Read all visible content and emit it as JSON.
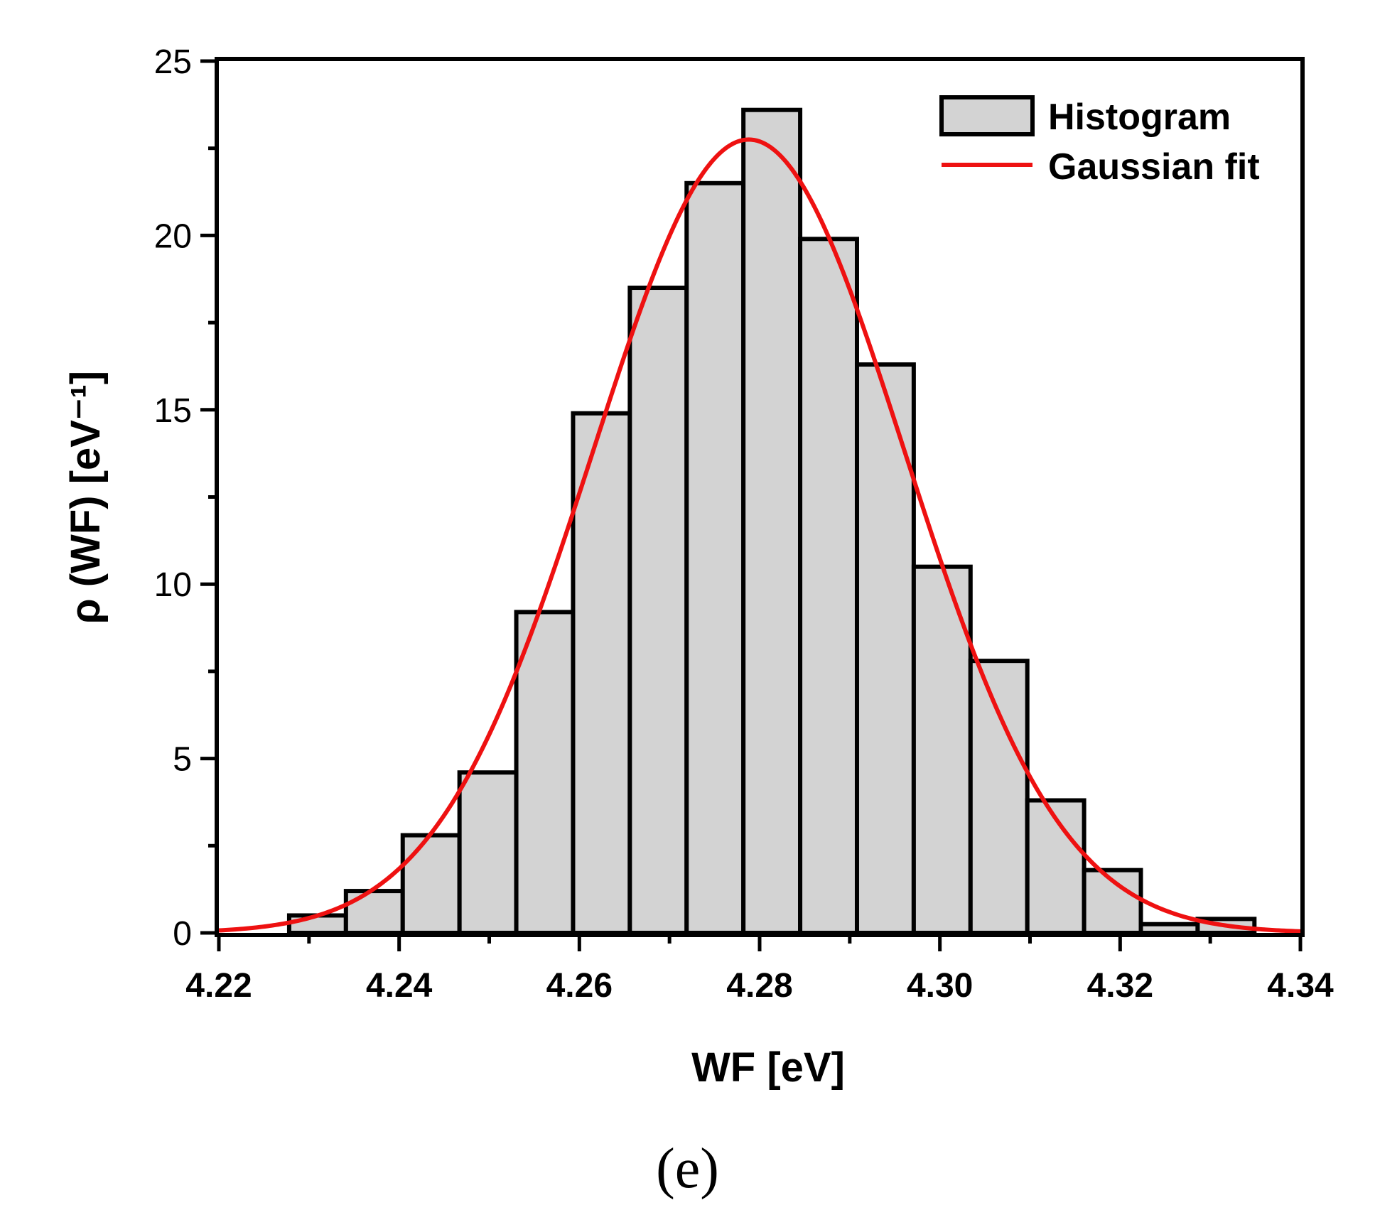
{
  "chart_data": {
    "type": "bar",
    "xlabel": "WF [eV]",
    "ylabel": "ρ (WF) [eV⁻¹]",
    "xlim": [
      4.22,
      4.34
    ],
    "ylim": [
      0,
      25
    ],
    "xticks": [
      "4.22",
      "4.24",
      "4.26",
      "4.28",
      "4.30",
      "4.32",
      "4.34"
    ],
    "yticks": [
      "0",
      "5",
      "10",
      "15",
      "20",
      "25"
    ],
    "bin_edges": [
      4.2278,
      4.2341,
      4.2404,
      4.2467,
      4.253,
      4.2593,
      4.2656,
      4.2719,
      4.2782,
      4.2845,
      4.2908,
      4.2971,
      4.3034,
      4.3097,
      4.316,
      4.3223,
      4.3286,
      4.3349
    ],
    "values": [
      0.5,
      1.2,
      2.8,
      4.6,
      9.2,
      14.9,
      18.5,
      21.5,
      23.6,
      19.9,
      16.3,
      10.5,
      7.8,
      3.8,
      1.8,
      0.25,
      0.4
    ],
    "series": [
      {
        "name": "Histogram",
        "kind": "bar",
        "color": "#d3d3d3"
      },
      {
        "name": "Gaussian fit",
        "kind": "line",
        "color": "#ee1111",
        "mean": 4.2788,
        "sigma": 0.0173,
        "peak": 22.75
      }
    ],
    "legend": {
      "position": "top-right",
      "entries": [
        "Histogram",
        "Gaussian fit"
      ]
    }
  },
  "panel_label": "(e)"
}
